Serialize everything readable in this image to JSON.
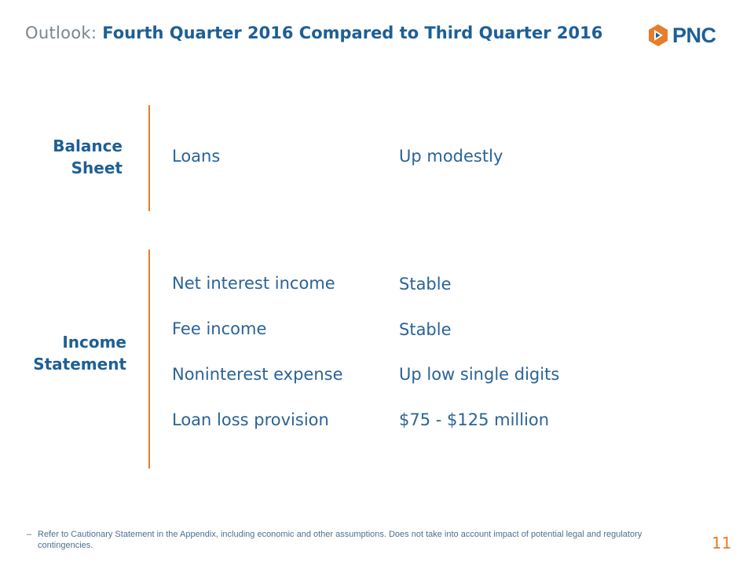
{
  "header": {
    "lead": "Outlook: ",
    "title": "Fourth Quarter 2016 Compared to Third Quarter 2016",
    "logo_text": "PNC"
  },
  "sections": [
    {
      "label_line1": "Balance",
      "label_line2": "Sheet",
      "rows": [
        {
          "item": "Loans",
          "outlook": "Up modestly"
        }
      ]
    },
    {
      "label_line1": "Income",
      "label_line2": "Statement",
      "rows": [
        {
          "item": "Net interest income",
          "outlook": "Stable"
        },
        {
          "item": "Fee income",
          "outlook": "Stable"
        },
        {
          "item": "Noninterest expense",
          "outlook": "Up low single digits"
        },
        {
          "item": "Loan loss provision",
          "outlook": "$75 - $125 million"
        }
      ]
    }
  ],
  "footnote": {
    "bullet": "–",
    "text": "Refer to Cautionary Statement in the Appendix, including economic and other assumptions.  Does not take into account impact of potential legal and regulatory contingencies."
  },
  "page_number": "11",
  "colors": {
    "brand_blue": "#1d5f96",
    "accent_orange": "#e57d2b",
    "muted_gray": "#7a8590"
  }
}
